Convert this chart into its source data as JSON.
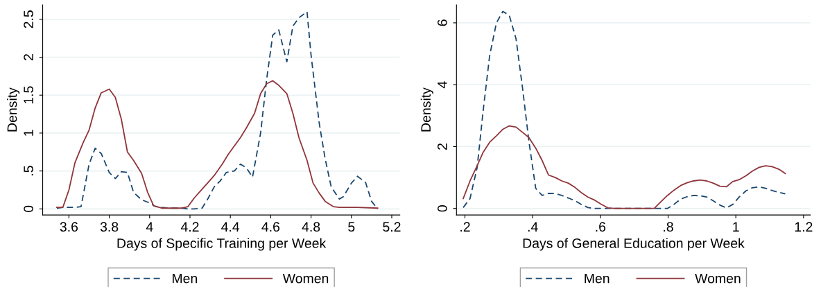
{
  "chart_data": [
    {
      "type": "line",
      "xlabel": "Days of Specific Training per Week",
      "ylabel": "Density",
      "xlim": [
        3.47,
        5.24
      ],
      "ylim": [
        -0.08,
        2.69
      ],
      "xticks": [
        3.6,
        3.8,
        4,
        4.2,
        4.4,
        4.6,
        4.8,
        5,
        5.2
      ],
      "yticks": [
        0,
        {
          "value": 0.5,
          "label": ".5"
        },
        1,
        1.5,
        2,
        2.5
      ],
      "grid": "y",
      "legend": "bottom",
      "series": [
        {
          "name": "Men",
          "color": "#1a476f",
          "line_style": "dashed",
          "x": [
            3.54,
            3.57,
            3.6,
            3.63,
            3.66,
            3.7,
            3.73,
            3.76,
            3.8,
            3.83,
            3.86,
            3.89,
            3.92,
            3.96,
            3.99,
            4.03,
            4.06,
            4.09,
            4.16,
            4.19,
            4.22,
            4.26,
            4.29,
            4.32,
            4.35,
            4.38,
            4.42,
            4.45,
            4.48,
            4.51,
            4.55,
            4.58,
            4.61,
            4.64,
            4.68,
            4.71,
            4.74,
            4.78,
            4.8,
            4.84,
            4.87,
            4.9,
            4.94,
            4.96,
            5.0,
            5.03,
            5.07,
            5.1,
            5.13
          ],
          "values": [
            0.01,
            0.02,
            0.02,
            0.02,
            0.03,
            0.59,
            0.8,
            0.73,
            0.48,
            0.4,
            0.49,
            0.48,
            0.22,
            0.12,
            0.09,
            0.03,
            0.02,
            0.01,
            0.01,
            0,
            0,
            0.01,
            0.14,
            0.29,
            0.37,
            0.48,
            0.5,
            0.59,
            0.54,
            0.42,
            1.0,
            1.71,
            2.29,
            2.36,
            1.94,
            2.41,
            2.52,
            2.6,
            2.03,
            1.14,
            0.66,
            0.29,
            0.13,
            0.16,
            0.34,
            0.43,
            0.35,
            0.1,
            0
          ]
        },
        {
          "name": "Women",
          "color": "#90353b",
          "line_style": "solid",
          "x": [
            3.54,
            3.57,
            3.6,
            3.63,
            3.67,
            3.7,
            3.73,
            3.76,
            3.8,
            3.83,
            3.86,
            3.89,
            3.92,
            3.96,
            3.99,
            4.02,
            4.06,
            4.16,
            4.19,
            4.22,
            4.26,
            4.29,
            4.32,
            4.36,
            4.39,
            4.42,
            4.45,
            4.48,
            4.52,
            4.55,
            4.58,
            4.61,
            4.64,
            4.68,
            4.71,
            4.74,
            4.78,
            4.81,
            4.84,
            4.87,
            4.91,
            4.94,
            5.03,
            5.13
          ],
          "values": [
            0.02,
            0.02,
            0.25,
            0.61,
            0.87,
            1.04,
            1.33,
            1.53,
            1.58,
            1.47,
            1.18,
            0.75,
            0.64,
            0.47,
            0.22,
            0.04,
            0.01,
            0.01,
            0.03,
            0.14,
            0.26,
            0.35,
            0.44,
            0.59,
            0.72,
            0.83,
            0.94,
            1.07,
            1.26,
            1.52,
            1.65,
            1.69,
            1.63,
            1.52,
            1.26,
            0.94,
            0.64,
            0.34,
            0.21,
            0.1,
            0.03,
            0.02,
            0.02,
            0.01
          ]
        }
      ]
    },
    {
      "type": "line",
      "xlabel": "Days of General Education per Week",
      "ylabel": "Density",
      "xlim": [
        0.175,
        1.22
      ],
      "ylim": [
        -0.21,
        6.58
      ],
      "xticks": [
        {
          "value": 0.2,
          "label": ".2"
        },
        {
          "value": 0.4,
          "label": ".4"
        },
        {
          "value": 0.6,
          "label": ".6"
        },
        {
          "value": 0.8,
          "label": ".8"
        },
        1,
        1.2
      ],
      "yticks": [
        0,
        2,
        4,
        6
      ],
      "grid": "y",
      "legend": "bottom",
      "series": [
        {
          "name": "Men",
          "color": "#1a476f",
          "line_style": "dashed",
          "x": [
            0.195,
            0.215,
            0.236,
            0.254,
            0.273,
            0.293,
            0.312,
            0.331,
            0.351,
            0.37,
            0.389,
            0.409,
            0.428,
            0.447,
            0.467,
            0.486,
            0.505,
            0.525,
            0.544,
            0.563,
            0.583,
            0.624,
            0.798,
            0.817,
            0.837,
            0.856,
            0.875,
            0.895,
            0.914,
            0.933,
            0.953,
            0.972,
            0.991,
            1.01,
            1.03,
            1.049,
            1.069,
            1.088,
            1.107,
            1.146
          ],
          "values": [
            0.03,
            0.32,
            1.32,
            3.18,
            4.94,
            6.0,
            6.37,
            6.24,
            5.48,
            3.9,
            2.16,
            0.65,
            0.42,
            0.49,
            0.48,
            0.42,
            0.34,
            0.25,
            0.13,
            0.03,
            0,
            0,
            0,
            0.13,
            0.3,
            0.38,
            0.42,
            0.41,
            0.37,
            0.25,
            0.11,
            0.02,
            0.13,
            0.37,
            0.57,
            0.67,
            0.7,
            0.65,
            0.58,
            0.47
          ]
        },
        {
          "name": "Women",
          "color": "#90353b",
          "line_style": "solid",
          "x": [
            0.195,
            0.215,
            0.236,
            0.254,
            0.273,
            0.293,
            0.312,
            0.331,
            0.351,
            0.37,
            0.389,
            0.409,
            0.428,
            0.447,
            0.467,
            0.486,
            0.505,
            0.525,
            0.544,
            0.563,
            0.583,
            0.602,
            0.622,
            0.641,
            0.759,
            0.778,
            0.798,
            0.817,
            0.837,
            0.856,
            0.875,
            0.895,
            0.914,
            0.933,
            0.953,
            0.972,
            0.991,
            1.01,
            1.03,
            1.049,
            1.069,
            1.088,
            1.107,
            1.127,
            1.146
          ],
          "values": [
            0.32,
            0.89,
            1.38,
            1.82,
            2.14,
            2.35,
            2.56,
            2.67,
            2.63,
            2.46,
            2.29,
            1.95,
            1.55,
            1.08,
            1.0,
            0.89,
            0.82,
            0.68,
            0.51,
            0.37,
            0.27,
            0.14,
            0.02,
            0,
            0,
            0.21,
            0.42,
            0.59,
            0.74,
            0.83,
            0.89,
            0.92,
            0.89,
            0.82,
            0.72,
            0.7,
            0.87,
            0.93,
            1.06,
            1.21,
            1.33,
            1.38,
            1.35,
            1.27,
            1.13
          ]
        }
      ]
    }
  ]
}
